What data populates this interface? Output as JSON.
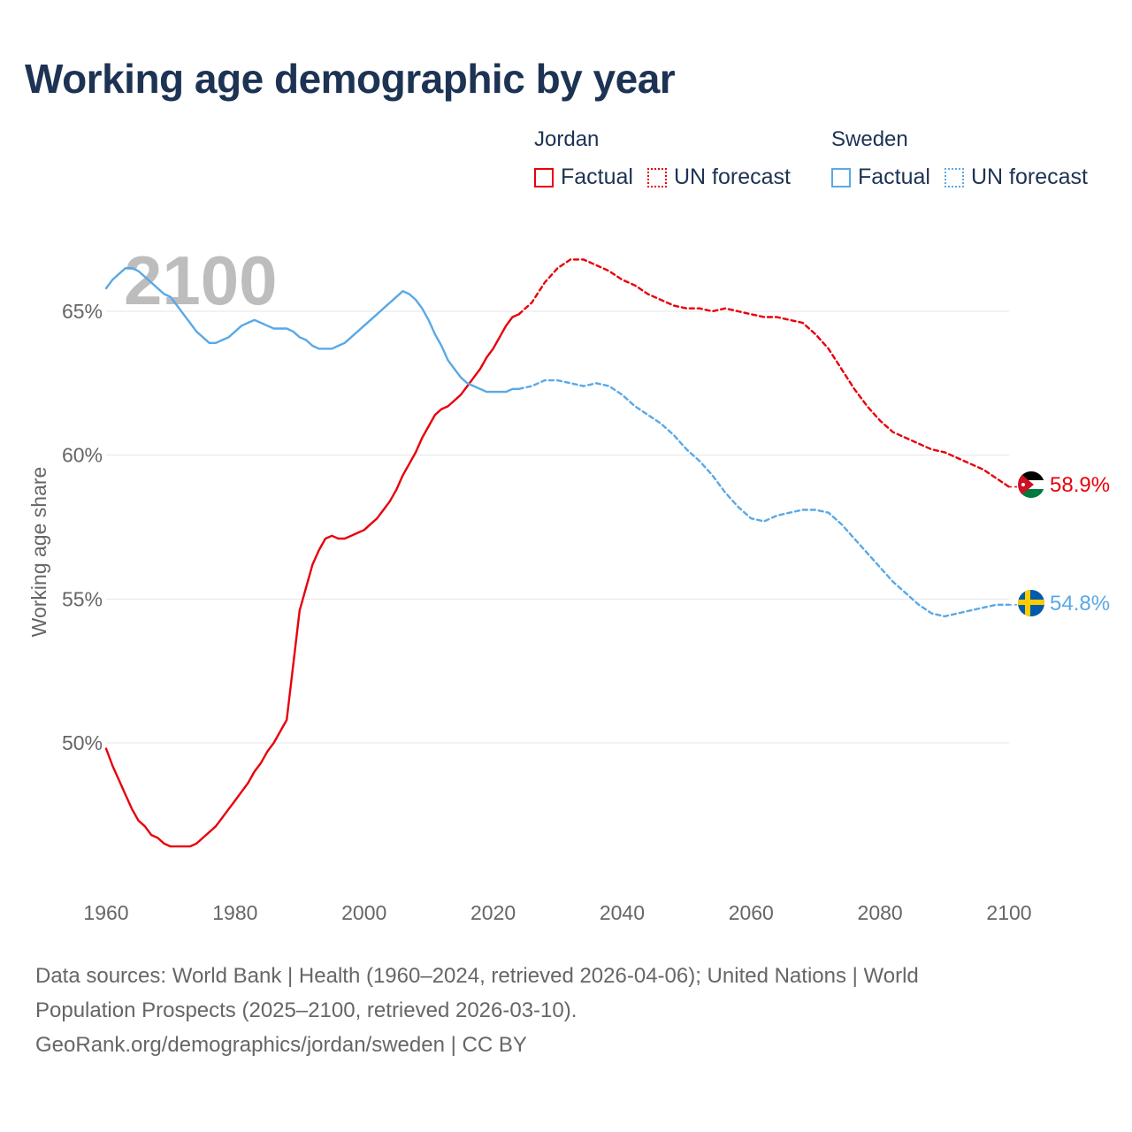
{
  "header": {
    "title": "Working age demographic by year"
  },
  "legend": {
    "groups": [
      {
        "name": "Jordan",
        "factual_label": "Factual",
        "forecast_label": "UN forecast",
        "color": "#e8000b"
      },
      {
        "name": "Sweden",
        "factual_label": "Factual",
        "forecast_label": "UN forecast",
        "color": "#5aa9e6"
      }
    ]
  },
  "footer": {
    "line1": "Data sources: World Bank | Health (1960–2024, retrieved 2026-04-06); United Nations | World",
    "line2": "Population Prospects (2025–2100, retrieved 2026-03-10).",
    "line3": "GeoRank.org/demographics/jordan/sweden | CC BY"
  },
  "chart_data": {
    "type": "line",
    "title": "Working age demographic by year",
    "ylabel": "Working age share",
    "xlabel": "",
    "current_year_label": "2100",
    "xlim": [
      1960,
      2100
    ],
    "ylim": [
      45,
      67
    ],
    "x_ticks": [
      1960,
      1980,
      2000,
      2020,
      2040,
      2060,
      2080,
      2100
    ],
    "x_tick_labels": [
      "1960",
      "1980",
      "2000",
      "2020",
      "2040",
      "2060",
      "2080",
      "2100"
    ],
    "y_ticks": [
      50,
      55,
      60,
      65
    ],
    "y_tick_labels": [
      "50%",
      "55%",
      "60%",
      "65%"
    ],
    "grid": true,
    "series": [
      {
        "name": "Jordan",
        "segment": "Factual",
        "color": "#e8000b",
        "dash": "solid",
        "x": [
          1960,
          1961,
          1962,
          1963,
          1964,
          1965,
          1966,
          1967,
          1968,
          1969,
          1970,
          1971,
          1972,
          1973,
          1974,
          1975,
          1976,
          1977,
          1978,
          1979,
          1980,
          1981,
          1982,
          1983,
          1984,
          1985,
          1986,
          1987,
          1988,
          1989,
          1990,
          1991,
          1992,
          1993,
          1994,
          1995,
          1996,
          1997,
          1998,
          1999,
          2000,
          2001,
          2002,
          2003,
          2004,
          2005,
          2006,
          2007,
          2008,
          2009,
          2010,
          2011,
          2012,
          2013,
          2014,
          2015,
          2016,
          2017,
          2018,
          2019,
          2020,
          2021,
          2022,
          2023,
          2024
        ],
        "values": [
          49.8,
          49.2,
          48.7,
          48.2,
          47.7,
          47.3,
          47.1,
          46.8,
          46.7,
          46.5,
          46.4,
          46.4,
          46.4,
          46.4,
          46.5,
          46.7,
          46.9,
          47.1,
          47.4,
          47.7,
          48.0,
          48.3,
          48.6,
          49.0,
          49.3,
          49.7,
          50.0,
          50.4,
          50.8,
          52.7,
          54.6,
          55.4,
          56.2,
          56.7,
          57.1,
          57.2,
          57.1,
          57.1,
          57.2,
          57.3,
          57.4,
          57.6,
          57.8,
          58.1,
          58.4,
          58.8,
          59.3,
          59.7,
          60.1,
          60.6,
          61.0,
          61.4,
          61.6,
          61.7,
          61.9,
          62.1,
          62.4,
          62.7,
          63.0,
          63.4,
          63.7,
          64.1,
          64.5,
          64.8,
          64.9
        ]
      },
      {
        "name": "Jordan",
        "segment": "UN forecast",
        "color": "#e8000b",
        "dash": "dashed",
        "x": [
          2024,
          2026,
          2028,
          2030,
          2032,
          2034,
          2036,
          2038,
          2040,
          2042,
          2044,
          2046,
          2048,
          2050,
          2052,
          2054,
          2056,
          2058,
          2060,
          2062,
          2064,
          2066,
          2068,
          2070,
          2072,
          2074,
          2076,
          2078,
          2080,
          2082,
          2084,
          2086,
          2088,
          2090,
          2092,
          2094,
          2096,
          2098,
          2100
        ],
        "values": [
          64.9,
          65.3,
          66.0,
          66.5,
          66.8,
          66.8,
          66.6,
          66.4,
          66.1,
          65.9,
          65.6,
          65.4,
          65.2,
          65.1,
          65.1,
          65.0,
          65.1,
          65.0,
          64.9,
          64.8,
          64.8,
          64.7,
          64.6,
          64.2,
          63.7,
          63.0,
          62.3,
          61.7,
          61.2,
          60.8,
          60.6,
          60.4,
          60.2,
          60.1,
          59.9,
          59.7,
          59.5,
          59.2,
          58.9
        ]
      },
      {
        "name": "Sweden",
        "segment": "Factual",
        "color": "#5aa9e6",
        "dash": "solid",
        "x": [
          1960,
          1961,
          1962,
          1963,
          1964,
          1965,
          1966,
          1967,
          1968,
          1969,
          1970,
          1971,
          1972,
          1973,
          1974,
          1975,
          1976,
          1977,
          1978,
          1979,
          1980,
          1981,
          1982,
          1983,
          1984,
          1985,
          1986,
          1987,
          1988,
          1989,
          1990,
          1991,
          1992,
          1993,
          1994,
          1995,
          1996,
          1997,
          1998,
          1999,
          2000,
          2001,
          2002,
          2003,
          2004,
          2005,
          2006,
          2007,
          2008,
          2009,
          2010,
          2011,
          2012,
          2013,
          2014,
          2015,
          2016,
          2017,
          2018,
          2019,
          2020,
          2021,
          2022,
          2023,
          2024
        ],
        "values": [
          65.8,
          66.1,
          66.3,
          66.5,
          66.5,
          66.4,
          66.2,
          66.0,
          65.8,
          65.6,
          65.5,
          65.2,
          64.9,
          64.6,
          64.3,
          64.1,
          63.9,
          63.9,
          64.0,
          64.1,
          64.3,
          64.5,
          64.6,
          64.7,
          64.6,
          64.5,
          64.4,
          64.4,
          64.4,
          64.3,
          64.1,
          64.0,
          63.8,
          63.7,
          63.7,
          63.7,
          63.8,
          63.9,
          64.1,
          64.3,
          64.5,
          64.7,
          64.9,
          65.1,
          65.3,
          65.5,
          65.7,
          65.6,
          65.4,
          65.1,
          64.7,
          64.2,
          63.8,
          63.3,
          63.0,
          62.7,
          62.5,
          62.4,
          62.3,
          62.2,
          62.2,
          62.2,
          62.2,
          62.3,
          62.3
        ]
      },
      {
        "name": "Sweden",
        "segment": "UN forecast",
        "color": "#5aa9e6",
        "dash": "dashed",
        "x": [
          2024,
          2026,
          2028,
          2030,
          2032,
          2034,
          2036,
          2038,
          2040,
          2042,
          2044,
          2046,
          2048,
          2050,
          2052,
          2054,
          2056,
          2058,
          2060,
          2062,
          2064,
          2066,
          2068,
          2070,
          2072,
          2074,
          2076,
          2078,
          2080,
          2082,
          2084,
          2086,
          2088,
          2090,
          2092,
          2094,
          2096,
          2098,
          2100
        ],
        "values": [
          62.3,
          62.4,
          62.6,
          62.6,
          62.5,
          62.4,
          62.5,
          62.4,
          62.1,
          61.7,
          61.4,
          61.1,
          60.7,
          60.2,
          59.8,
          59.3,
          58.7,
          58.2,
          57.8,
          57.7,
          57.9,
          58.0,
          58.1,
          58.1,
          58.0,
          57.6,
          57.1,
          56.6,
          56.1,
          55.6,
          55.2,
          54.8,
          54.5,
          54.4,
          54.5,
          54.6,
          54.7,
          54.8,
          54.8
        ]
      }
    ],
    "end_labels": [
      {
        "country": "Jordan",
        "text": "58.9%",
        "value": 58.9,
        "color": "#e8000b"
      },
      {
        "country": "Sweden",
        "text": "54.8%",
        "value": 54.8,
        "color": "#5aa9e6"
      }
    ]
  }
}
